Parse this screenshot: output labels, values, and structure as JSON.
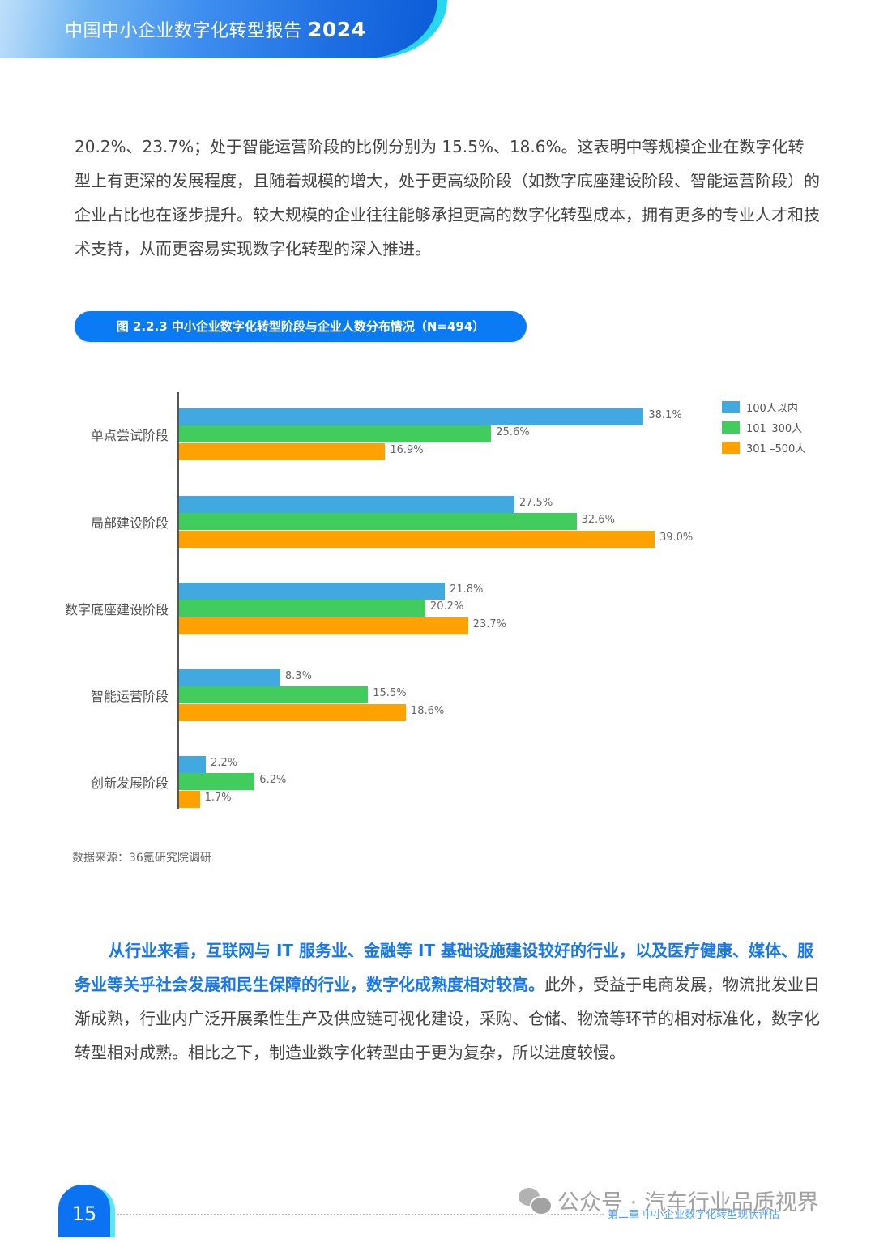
{
  "header": {
    "title_text": "中国中小企业数字化转型报告",
    "title_year": "2024"
  },
  "paragraph1": "20.2%、23.7%；处于智能运营阶段的比例分别为 15.5%、18.6%。这表明中等规模企业在数字化转型上有更深的发展程度，且随着规模的增大，处于更高级阶段（如数字底座建设阶段、智能运营阶段）的企业占比也在逐步提升。较大规模的企业往往能够承担更高的数字化转型成本，拥有更多的专业人才和技术支持，从而更容易实现数字化转型的深入推进。",
  "figure": {
    "title": "图 2.2.3 中小企业数字化转型阶段与企业人数分布情况（N=494）",
    "source": "数据来源：36氪研究院调研"
  },
  "chart_data": {
    "type": "bar",
    "orientation": "horizontal",
    "title": "图 2.2.3 中小企业数字化转型阶段与企业人数分布情况（N=494）",
    "categories": [
      "单点尝试阶段",
      "局部建设阶段",
      "数字底座建设阶段",
      "智能运营阶段",
      "创新发展阶段"
    ],
    "series": [
      {
        "name": "100人以内",
        "color": "#42a8e0",
        "values": [
          38.1,
          27.5,
          21.8,
          8.3,
          2.2
        ],
        "labels": [
          "38.1%",
          "27.5%",
          "21.8%",
          "8.3%",
          "2.2%"
        ]
      },
      {
        "name": "101–300人",
        "color": "#43cc5e",
        "values": [
          25.6,
          32.6,
          20.2,
          15.5,
          6.2
        ],
        "labels": [
          "25.6%",
          "32.6%",
          "20.2%",
          "15.5%",
          "6.2%"
        ]
      },
      {
        "name": "301 –500人",
        "color": "#ffa200",
        "values": [
          16.9,
          39.0,
          23.7,
          18.6,
          1.7
        ],
        "labels": [
          "16.9%",
          "39.0%",
          "23.7%",
          "18.6%",
          "1.7%"
        ]
      }
    ],
    "xlabel": "",
    "ylabel": "",
    "unit": "%",
    "grid": false,
    "legend_position": "top-right"
  },
  "paragraph2": {
    "highlight": "从行业来看，互联网与 IT 服务业、金融等 IT 基础设施建设较好的行业，以及医疗健康、媒体、服务业等关乎社会发展和民生保障的行业，数字化成熟度相对较高。",
    "rest": "此外，受益于电商发展，物流批发业日渐成熟，行业内广泛开展柔性生产及供应链可视化建设，采购、仓储、物流等环节的相对标准化，数字化转型相对成熟。相比之下，制造业数字化转型由于更为复杂，所以进度较慢。"
  },
  "footer": {
    "page_number": "15",
    "chapter": "第二章 中小企业数字化转型现状评估",
    "watermark": "公众号 · 汽车行业品质视界"
  }
}
